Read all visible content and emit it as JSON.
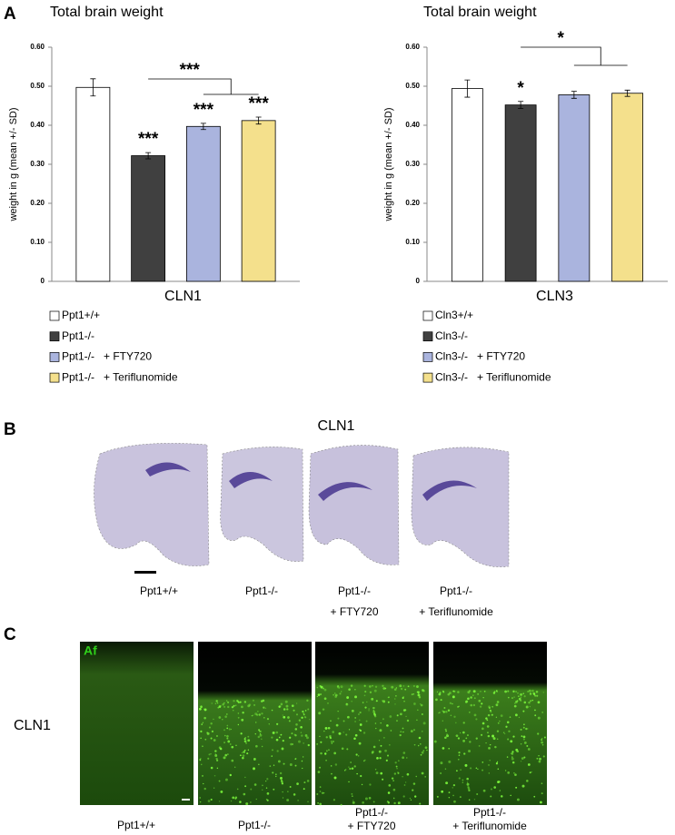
{
  "panel_labels": [
    "A",
    "B",
    "C"
  ],
  "chart_data": [
    {
      "type": "bar",
      "title": "Total brain weight",
      "ylabel": "weight in g (mean +/- SD)",
      "xlabel": "CLN1",
      "categories": [
        "Ppt1+/+",
        "Ppt1-/-",
        "Ppt1-/-   + FTY720",
        "Ppt1-/-   + Teriflunomide"
      ],
      "values": [
        0.497,
        0.322,
        0.397,
        0.412
      ],
      "errors": [
        0.022,
        0.008,
        0.008,
        0.009
      ],
      "colors": [
        "#ffffff",
        "#404040",
        "#aab4de",
        "#f4e08c"
      ],
      "bar_annotations": [
        null,
        "***",
        "***",
        "***"
      ],
      "bracket_label": "***",
      "ylim": [
        0,
        0.6
      ],
      "yticks": [
        0,
        {
          "value": 0.1,
          "label": "0.10"
        },
        {
          "value": 0.2,
          "label": "0.20"
        },
        {
          "value": 0.3,
          "label": "0.30"
        },
        {
          "value": 0.4,
          "label": "0.40"
        },
        {
          "value": 0.5,
          "label": "0.50"
        },
        {
          "value": 0.6,
          "label": "0.60"
        }
      ]
    },
    {
      "type": "bar",
      "title": "Total brain weight",
      "ylabel": "weight in g (mean +/- SD)",
      "xlabel": "CLN3",
      "categories": [
        "Cln3+/+",
        "Cln3-/-",
        "Cln3-/-   + FTY720",
        "Cln3-/-   + Teriflunomide"
      ],
      "values": [
        0.494,
        0.452,
        0.478,
        0.482
      ],
      "errors": [
        0.022,
        0.009,
        0.009,
        0.008
      ],
      "colors": [
        "#ffffff",
        "#404040",
        "#aab4de",
        "#f4e08c"
      ],
      "bar_annotations": [
        null,
        "*",
        null,
        null
      ],
      "bracket_label": "*",
      "ylim": [
        0,
        0.6
      ],
      "yticks": [
        0,
        {
          "value": 0.1,
          "label": "0.10"
        },
        {
          "value": 0.2,
          "label": "0.20"
        },
        {
          "value": 0.3,
          "label": "0.30"
        },
        {
          "value": 0.4,
          "label": "0.40"
        },
        {
          "value": 0.5,
          "label": "0.50"
        },
        {
          "value": 0.6,
          "label": "0.60"
        }
      ]
    }
  ],
  "panel_b": {
    "title": "CLN1",
    "captions": [
      [
        "Ppt1+/+"
      ],
      [
        "Ppt1-/-"
      ],
      [
        "Ppt1-/-",
        "+ FTY720"
      ],
      [
        "Ppt1-/-",
        "+ Teriflunomide"
      ]
    ]
  },
  "panel_c": {
    "stain": "Af",
    "row_label": "CLN1",
    "captions": [
      [
        "Ppt1+/+"
      ],
      [
        "Ppt1-/-"
      ],
      [
        "Ppt1-/-",
        "+ FTY720"
      ],
      [
        "Ppt1-/-",
        "+ Teriflunomide"
      ]
    ]
  }
}
